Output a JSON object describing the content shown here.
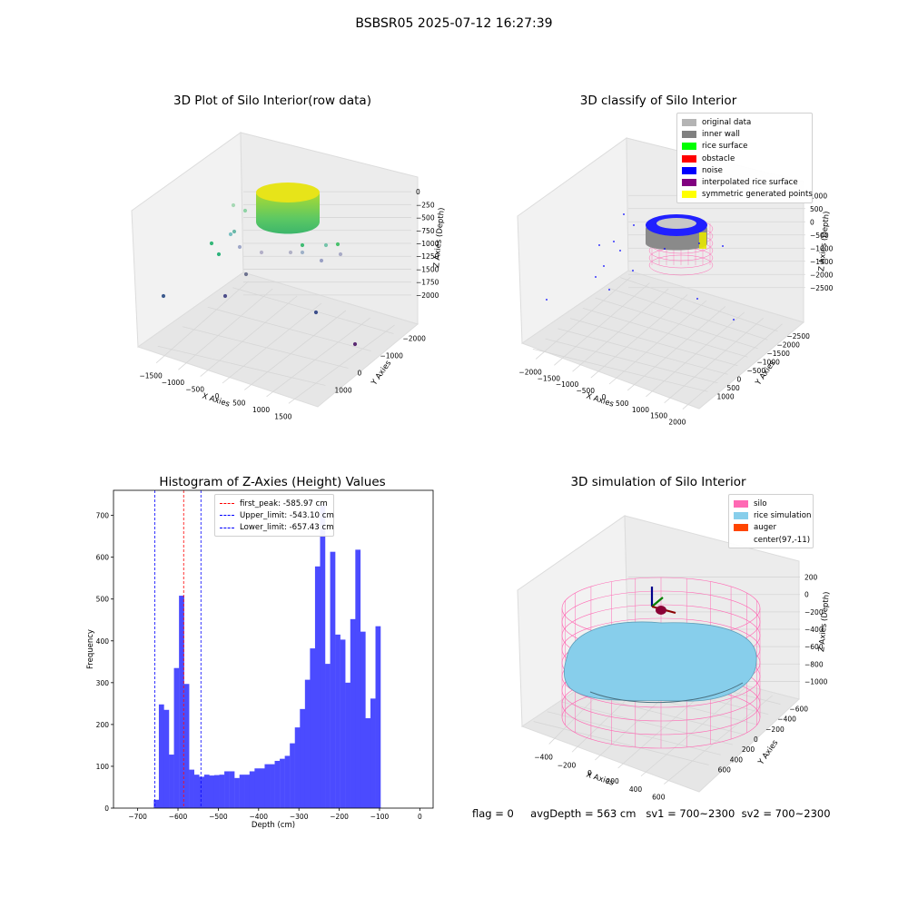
{
  "title": "BSBSR05 2025-07-12 16:27:39",
  "footer": {
    "flag": "flag = 0",
    "avg_depth": "avgDepth = 563 cm",
    "sv1": "sv1 = 700~2300",
    "sv2": "sv2 = 700~2300"
  },
  "chart_data": [
    {
      "type": "scatter",
      "projection": "3d",
      "title": "3D Plot of Silo Interior(row data)",
      "xlabel": "X Axies",
      "ylabel": "Y Axies",
      "zlabel": "Z Axies (Depth)",
      "x_ticks": [
        "−1500",
        "−1000",
        "−500",
        "0",
        "500",
        "1000",
        "1500"
      ],
      "y_ticks": [
        "1000",
        "0",
        "−1000",
        "−2000"
      ],
      "z_ticks": [
        "0",
        "−250",
        "−500",
        "−750",
        "−1000",
        "−1250",
        "−1500",
        "−1750",
        "−2000"
      ],
      "colormap": "viridis",
      "grid": true
    },
    {
      "type": "scatter",
      "projection": "3d",
      "title": "3D classify of Silo Interior",
      "xlabel": "X Axies",
      "ylabel": "Y Axies",
      "zlabel": "Z Axies (Depth)",
      "x_ticks": [
        "−2000",
        "−1500",
        "−1000",
        "−500",
        "0",
        "500",
        "1000",
        "1500",
        "2000"
      ],
      "y_ticks": [
        "1000",
        "500",
        "0",
        "−500",
        "−1000",
        "−1500",
        "−2000",
        "−2500"
      ],
      "z_ticks": [
        "1000",
        "500",
        "0",
        "−500",
        "−1000",
        "−1500",
        "−2000",
        "−2500"
      ],
      "legend": [
        {
          "label": "original data",
          "color": "#b4b4b4"
        },
        {
          "label": "inner wall",
          "color": "#808080"
        },
        {
          "label": "rice surface",
          "color": "#00ff00"
        },
        {
          "label": "obstacle",
          "color": "#ff0000"
        },
        {
          "label": "noise",
          "color": "#0000ff"
        },
        {
          "label": "interpolated rice surface",
          "color": "#800080"
        },
        {
          "label": "symmetric generated points",
          "color": "#ffff00"
        }
      ],
      "legend_position": "top-right",
      "grid": true
    },
    {
      "type": "bar",
      "title": "Histogram of Z-Axies (Height) Values",
      "xlabel": "Depth (cm)",
      "ylabel": "Frequency",
      "xlim": [
        -760,
        33
      ],
      "ylim": [
        0,
        760
      ],
      "x_ticks": [
        "−700",
        "−600",
        "−500",
        "−400",
        "−300",
        "−200",
        "−100",
        "0"
      ],
      "y_ticks": [
        "0",
        "100",
        "200",
        "300",
        "400",
        "500",
        "600",
        "700"
      ],
      "bin_start": -660,
      "bin_width": 12.5,
      "values": [
        20,
        248,
        235,
        128,
        335,
        508,
        297,
        92,
        80,
        75,
        80,
        78,
        79,
        80,
        88,
        88,
        72,
        80,
        80,
        88,
        95,
        95,
        105,
        105,
        113,
        118,
        125,
        155,
        193,
        237,
        307,
        382,
        578,
        725,
        345,
        613,
        415,
        403,
        300,
        452,
        618,
        422,
        215,
        262,
        435
      ],
      "bar_color": "#4b4bff",
      "vlines": [
        {
          "label": "first_peak: -585.97 cm",
          "x": -585.97,
          "color": "#ff0000"
        },
        {
          "label": "Upper_limit: -543.10 cm",
          "x": -543.1,
          "color": "#0000ff"
        },
        {
          "label": "Lower_limit: -657.43 cm",
          "x": -657.43,
          "color": "#0000ff"
        }
      ],
      "legend_position": "top-center",
      "grid": false
    },
    {
      "type": "scatter",
      "projection": "3d",
      "title": "3D simulation of Silo Interior",
      "xlabel": "X Axies",
      "ylabel": "Y Axies",
      "zlabel": "Z Axies (Depth)",
      "x_ticks": [
        "−400",
        "−200",
        "0",
        "200",
        "400",
        "600"
      ],
      "y_ticks": [
        "600",
        "400",
        "200",
        "0",
        "−200",
        "−400",
        "−600"
      ],
      "z_ticks": [
        "200",
        "0",
        "−200",
        "−400",
        "−600",
        "−800",
        "−1000"
      ],
      "legend": [
        {
          "label": "silo",
          "color": "#ff69b4"
        },
        {
          "label": "rice simulation",
          "color": "#87ceeb"
        },
        {
          "label": "auger",
          "color": "#ff4500"
        },
        {
          "label": "center(97,-11)",
          "color": "#ffffff"
        }
      ],
      "legend_position": "top-right",
      "grid": true
    }
  ]
}
